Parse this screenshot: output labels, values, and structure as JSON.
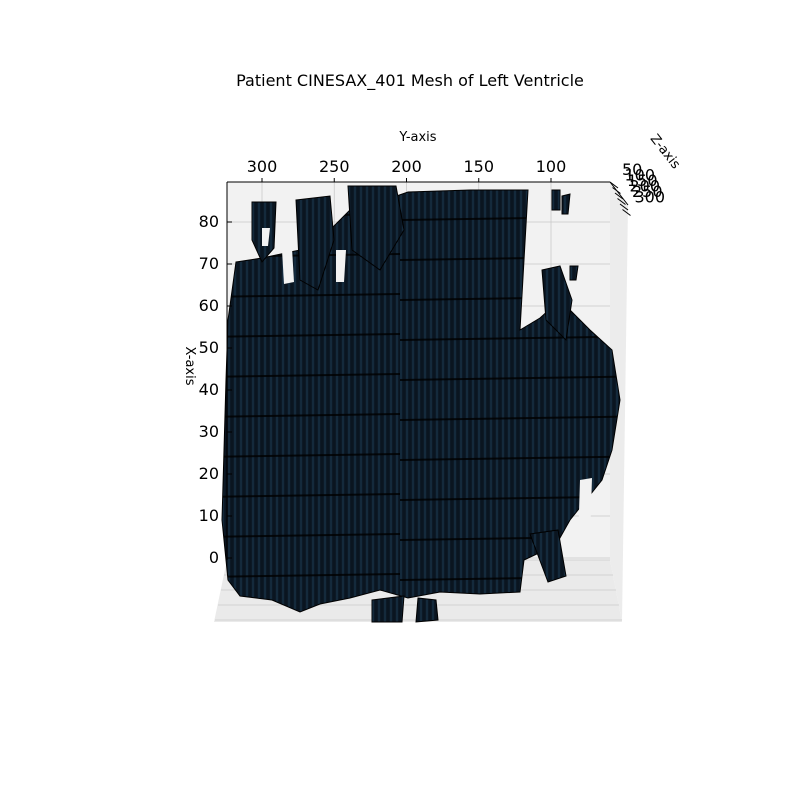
{
  "chart_data": {
    "type": "surface3d",
    "title": "Patient CINESAX_401 Mesh of Left Ventricle",
    "xlabel": "X-axis",
    "ylabel": "Y-axis",
    "zlabel": "Z-axis",
    "x_ticks": [
      "0",
      "10",
      "20",
      "30",
      "40",
      "50",
      "60",
      "70",
      "80"
    ],
    "y_ticks": [
      "300",
      "250",
      "200",
      "150",
      "100"
    ],
    "z_ticks": [
      "50",
      "100",
      "150",
      "200",
      "250",
      "300"
    ],
    "xlim": [
      -10,
      87
    ],
    "ylim": [
      75,
      325
    ],
    "zlim": [
      50,
      300
    ],
    "grid": true,
    "mesh_color": "#0d1b2a",
    "edge_color": "#000000",
    "pane_color": "#f2f2f2",
    "grid_color": "#c8c8c8"
  }
}
